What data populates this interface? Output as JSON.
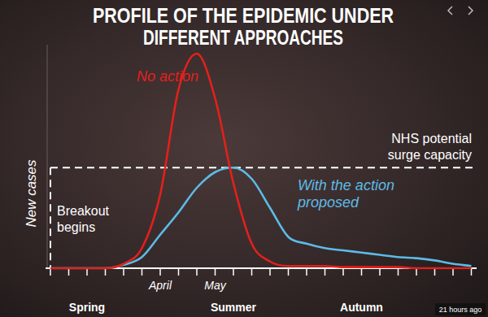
{
  "chart_data": {
    "type": "line",
    "title": "PROFILE OF THE EPIDEMIC UNDER DIFFERENT APPROACHES",
    "y_label": "New cases",
    "categories": [
      null,
      null,
      null,
      null,
      null,
      null,
      "April",
      null,
      null,
      "May",
      null,
      null,
      null,
      null,
      null,
      null,
      null,
      null,
      null,
      null,
      null,
      null,
      null,
      null
    ],
    "season_labels": [
      null,
      null,
      "Spring",
      null,
      null,
      null,
      null,
      null,
      null,
      null,
      "Summer",
      null,
      null,
      null,
      null,
      null,
      null,
      "Autumn",
      null,
      null,
      null,
      null,
      null,
      null
    ],
    "series": [
      {
        "name": "No action",
        "color": "#e3201b",
        "values": [
          0,
          0,
          0,
          0,
          2,
          9,
          33,
          80,
          96,
          76,
          38,
          11,
          3,
          1,
          1,
          1,
          0.5,
          0.5,
          0.5,
          0.5,
          0,
          0,
          0,
          0
        ]
      },
      {
        "name": "With the action proposed",
        "color": "#5cbbe6",
        "values": [
          0,
          0,
          0,
          0,
          1.5,
          5,
          15,
          25,
          36,
          43,
          45,
          40,
          27,
          14,
          11,
          9,
          8,
          7,
          6,
          5,
          4.5,
          3.5,
          2,
          1
        ]
      }
    ],
    "ylim": [
      0,
      100
    ],
    "grid": false,
    "tick_labels": "x",
    "annotations": {
      "surge_capacity": {
        "value": 45,
        "label": "NHS potential surge capacity"
      },
      "breakout": "Breakout begins"
    },
    "timestamp": "21 hours ago"
  }
}
